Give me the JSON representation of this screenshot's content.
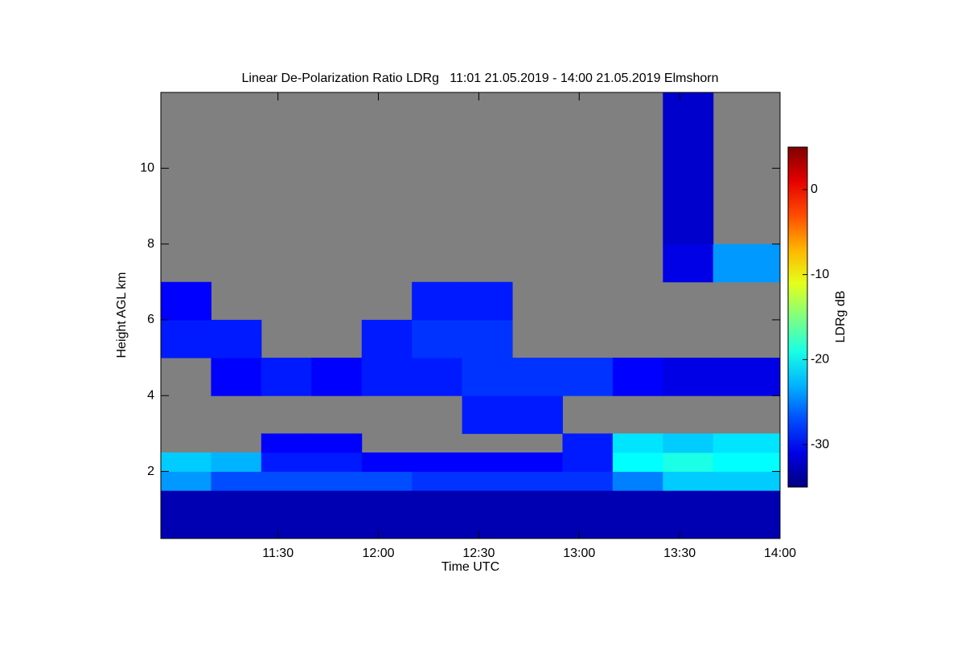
{
  "chart_data": {
    "type": "heatmap",
    "title": "Linear De-Polarization Ratio LDRg   11:01 21.05.2019 - 14:00 21.05.2019 Elmshorn",
    "x_label": "Time UTC",
    "y_label": "Height AGL km",
    "colorbar_label": "LDRg dB",
    "x_edges": [
      655,
      670,
      685,
      700,
      715,
      730,
      745,
      760,
      775,
      790,
      805,
      820,
      840
    ],
    "y_edges": [
      0.23,
      1.5,
      2,
      2.5,
      3,
      4,
      5,
      6,
      7,
      8,
      12
    ],
    "z": [
      [
        -33,
        -33,
        -33,
        -33,
        -33,
        -33,
        -33,
        -33,
        -33,
        -33,
        -33,
        -33
      ],
      [
        -24,
        -27,
        -27,
        -27,
        -27,
        -28,
        -28,
        -28,
        -28,
        -25,
        -22,
        -22
      ],
      [
        -22,
        -23,
        -29,
        -29,
        -30,
        -30,
        -30,
        -30,
        -29,
        -20,
        -19,
        -20
      ],
      [
        null,
        null,
        -30,
        -30,
        null,
        null,
        null,
        null,
        -29,
        -21,
        -22,
        -21
      ],
      [
        null,
        null,
        null,
        null,
        null,
        null,
        -29,
        -29,
        null,
        null,
        null,
        null
      ],
      [
        null,
        -30,
        -29,
        -30,
        -29,
        -29,
        -28,
        -28,
        -28,
        -30,
        -31,
        -31
      ],
      [
        -29,
        -29,
        null,
        null,
        -29,
        -28,
        -28,
        null,
        null,
        null,
        null,
        null
      ],
      [
        -30,
        null,
        null,
        null,
        null,
        -29,
        -29,
        null,
        null,
        null,
        null,
        null
      ],
      [
        null,
        null,
        null,
        null,
        null,
        null,
        null,
        null,
        null,
        null,
        -31,
        -24
      ],
      [
        null,
        null,
        null,
        null,
        null,
        null,
        null,
        null,
        null,
        null,
        -32,
        null
      ]
    ],
    "xlim": [
      655,
      840
    ],
    "xticks": [
      {
        "value": 690,
        "label": "11:30"
      },
      {
        "value": 720,
        "label": "12:00"
      },
      {
        "value": 750,
        "label": "12:30"
      },
      {
        "value": 780,
        "label": "13:00"
      },
      {
        "value": 810,
        "label": "13:30"
      },
      {
        "value": 840,
        "label": "14:00"
      }
    ],
    "ylim": [
      0.23,
      12
    ],
    "yticks": [
      2,
      4,
      6,
      8,
      10
    ],
    "clim": [
      -35,
      5
    ],
    "cticks": [
      0,
      -10,
      -20,
      -30
    ],
    "colormap": "jet",
    "background": "#808080"
  }
}
